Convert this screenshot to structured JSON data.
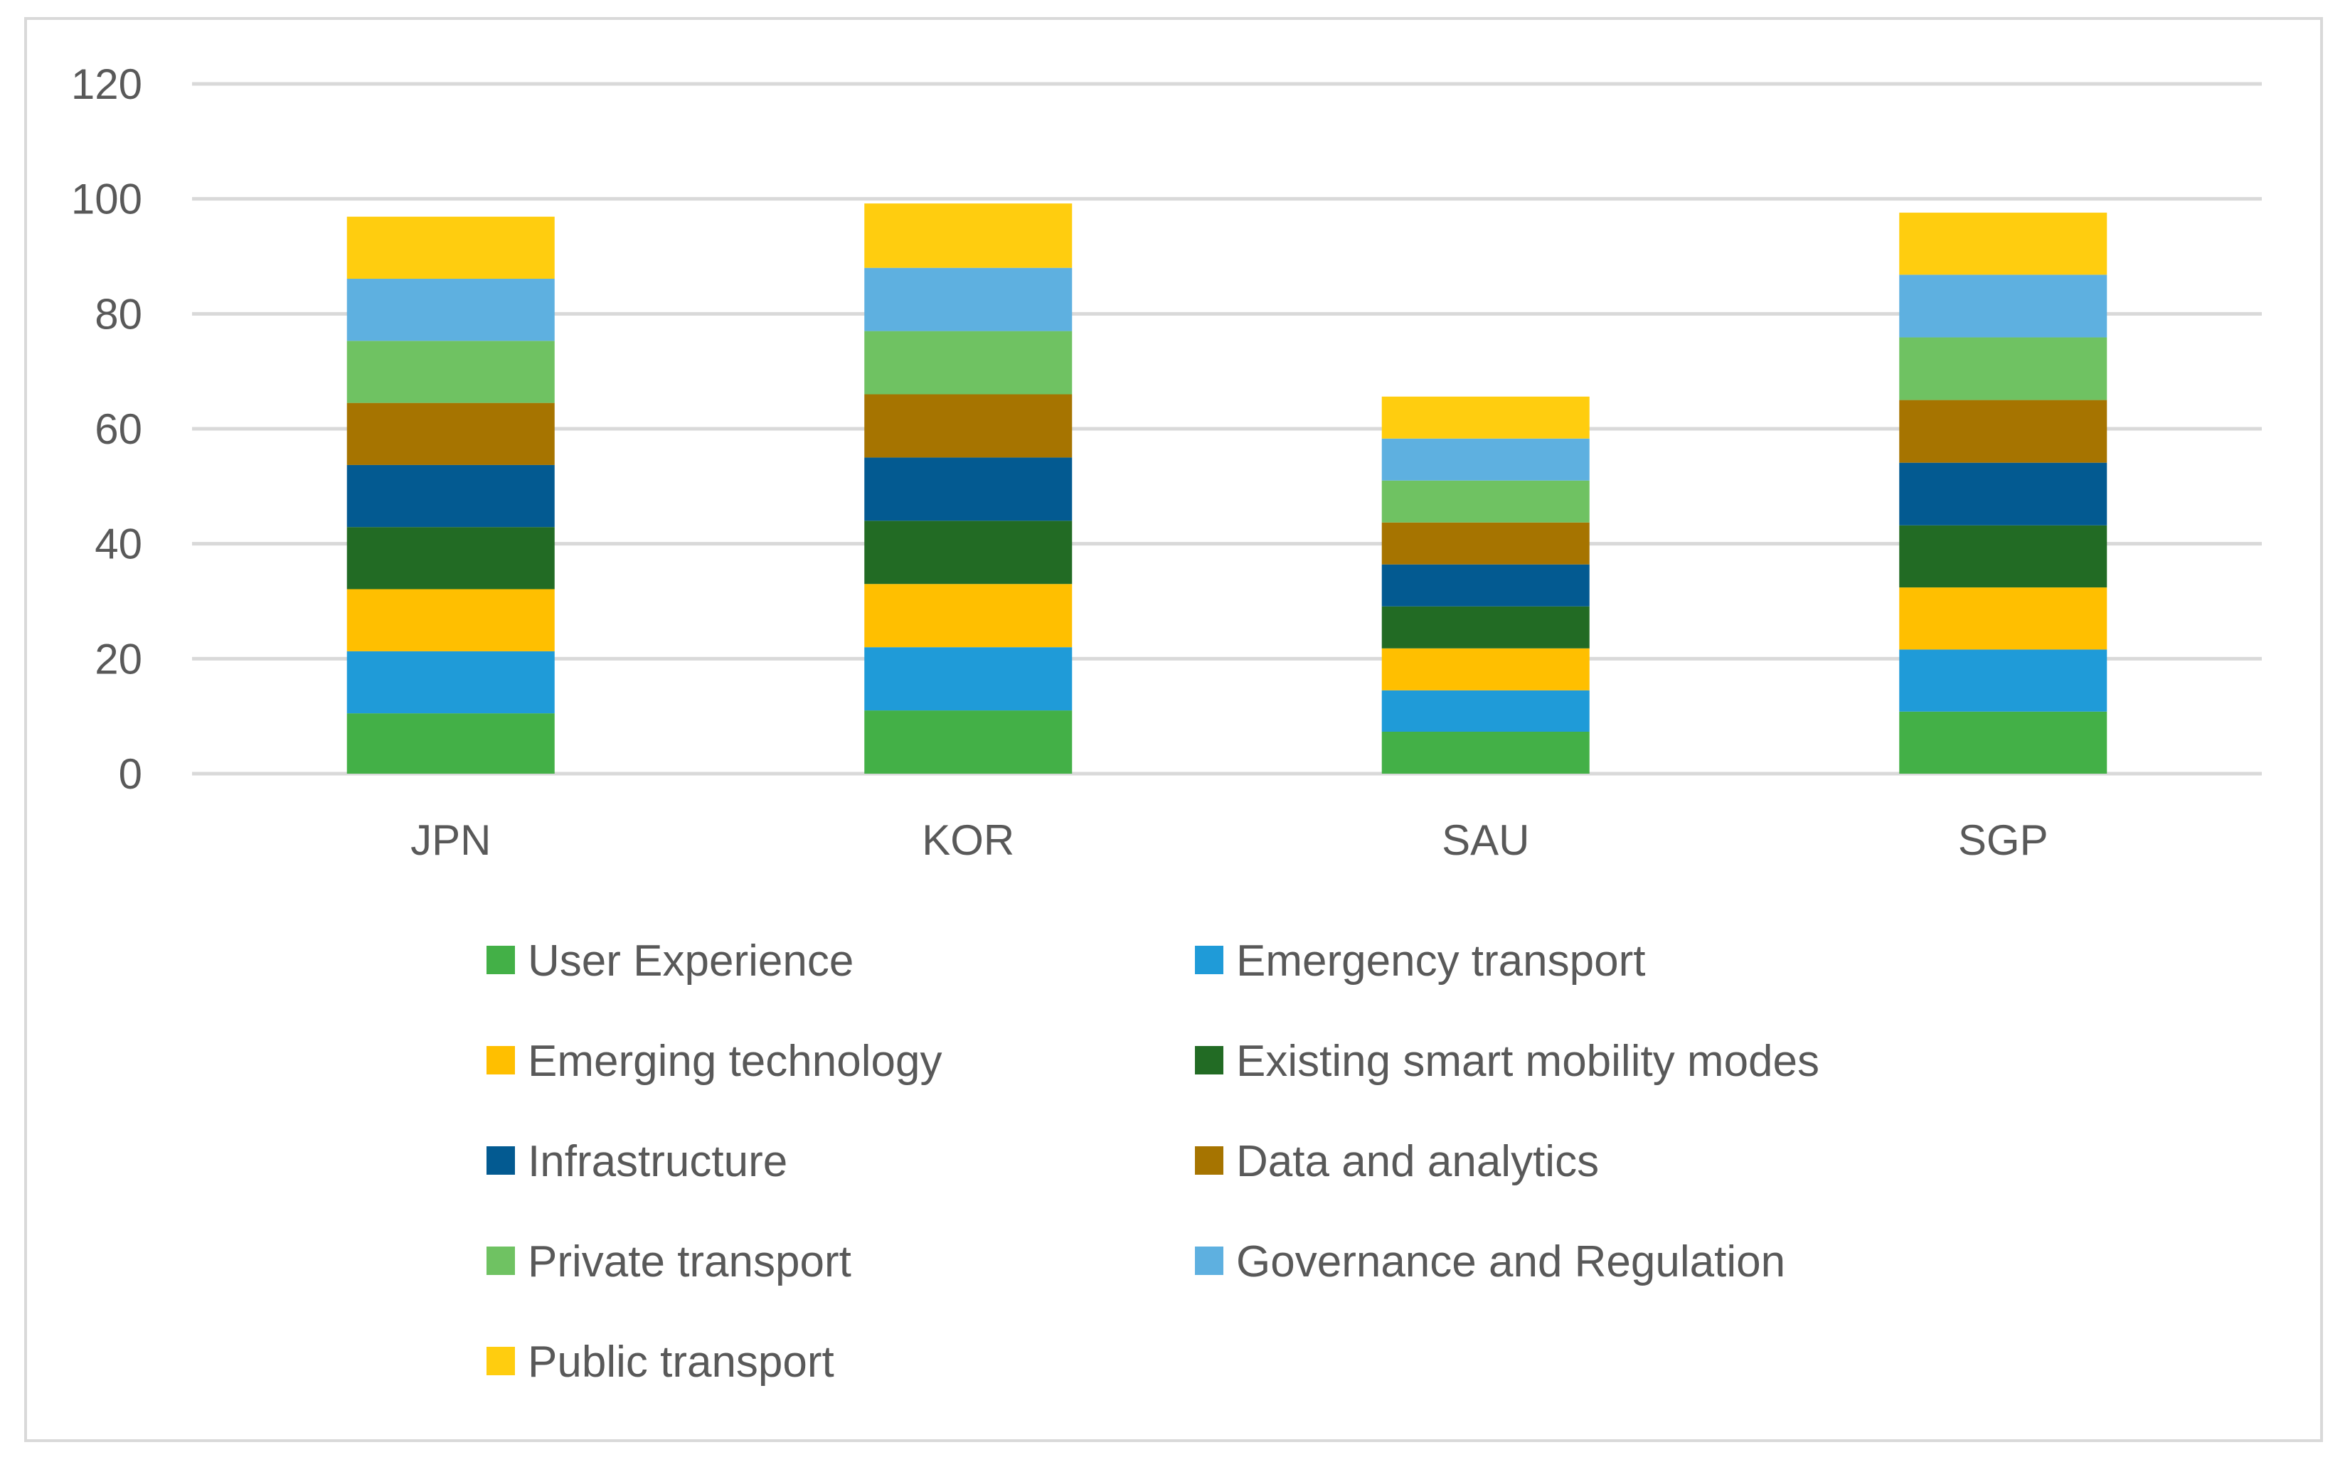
{
  "chart_data": {
    "type": "bar",
    "stacked": true,
    "title": "",
    "xlabel": "",
    "ylabel": "",
    "ylim": [
      0,
      120
    ],
    "yticks": [
      0,
      20,
      40,
      60,
      80,
      100,
      120
    ],
    "grid": true,
    "legend_position": "bottom",
    "categories": [
      "JPN",
      "KOR",
      "SAU",
      "SGP"
    ],
    "series": [
      {
        "name": "User Experience",
        "color": "#43b047",
        "values": [
          10.5,
          11.0,
          7.3,
          10.8
        ]
      },
      {
        "name": "Emergency transport",
        "color": "#1f9bd8",
        "values": [
          10.8,
          11.0,
          7.2,
          10.8
        ]
      },
      {
        "name": "Emerging technology",
        "color": "#ffbf00",
        "values": [
          10.8,
          11.0,
          7.3,
          10.8
        ]
      },
      {
        "name": "Existing smart mobility modes",
        "color": "#226b24",
        "values": [
          10.8,
          11.0,
          7.3,
          10.8
        ]
      },
      {
        "name": "Infrastructure",
        "color": "#035a91",
        "values": [
          10.8,
          11.0,
          7.3,
          10.9
        ]
      },
      {
        "name": "Data and analytics",
        "color": "#a67400",
        "values": [
          10.8,
          11.0,
          7.3,
          10.9
        ]
      },
      {
        "name": "Private transport",
        "color": "#6fc262",
        "values": [
          10.8,
          11.0,
          7.3,
          10.9
        ]
      },
      {
        "name": "Governance and Regulation",
        "color": "#5eb0e0",
        "values": [
          10.8,
          11.0,
          7.3,
          10.9
        ]
      },
      {
        "name": "Public transport",
        "color": "#ffcd0f",
        "values": [
          10.8,
          11.2,
          7.3,
          10.8
        ]
      }
    ]
  }
}
